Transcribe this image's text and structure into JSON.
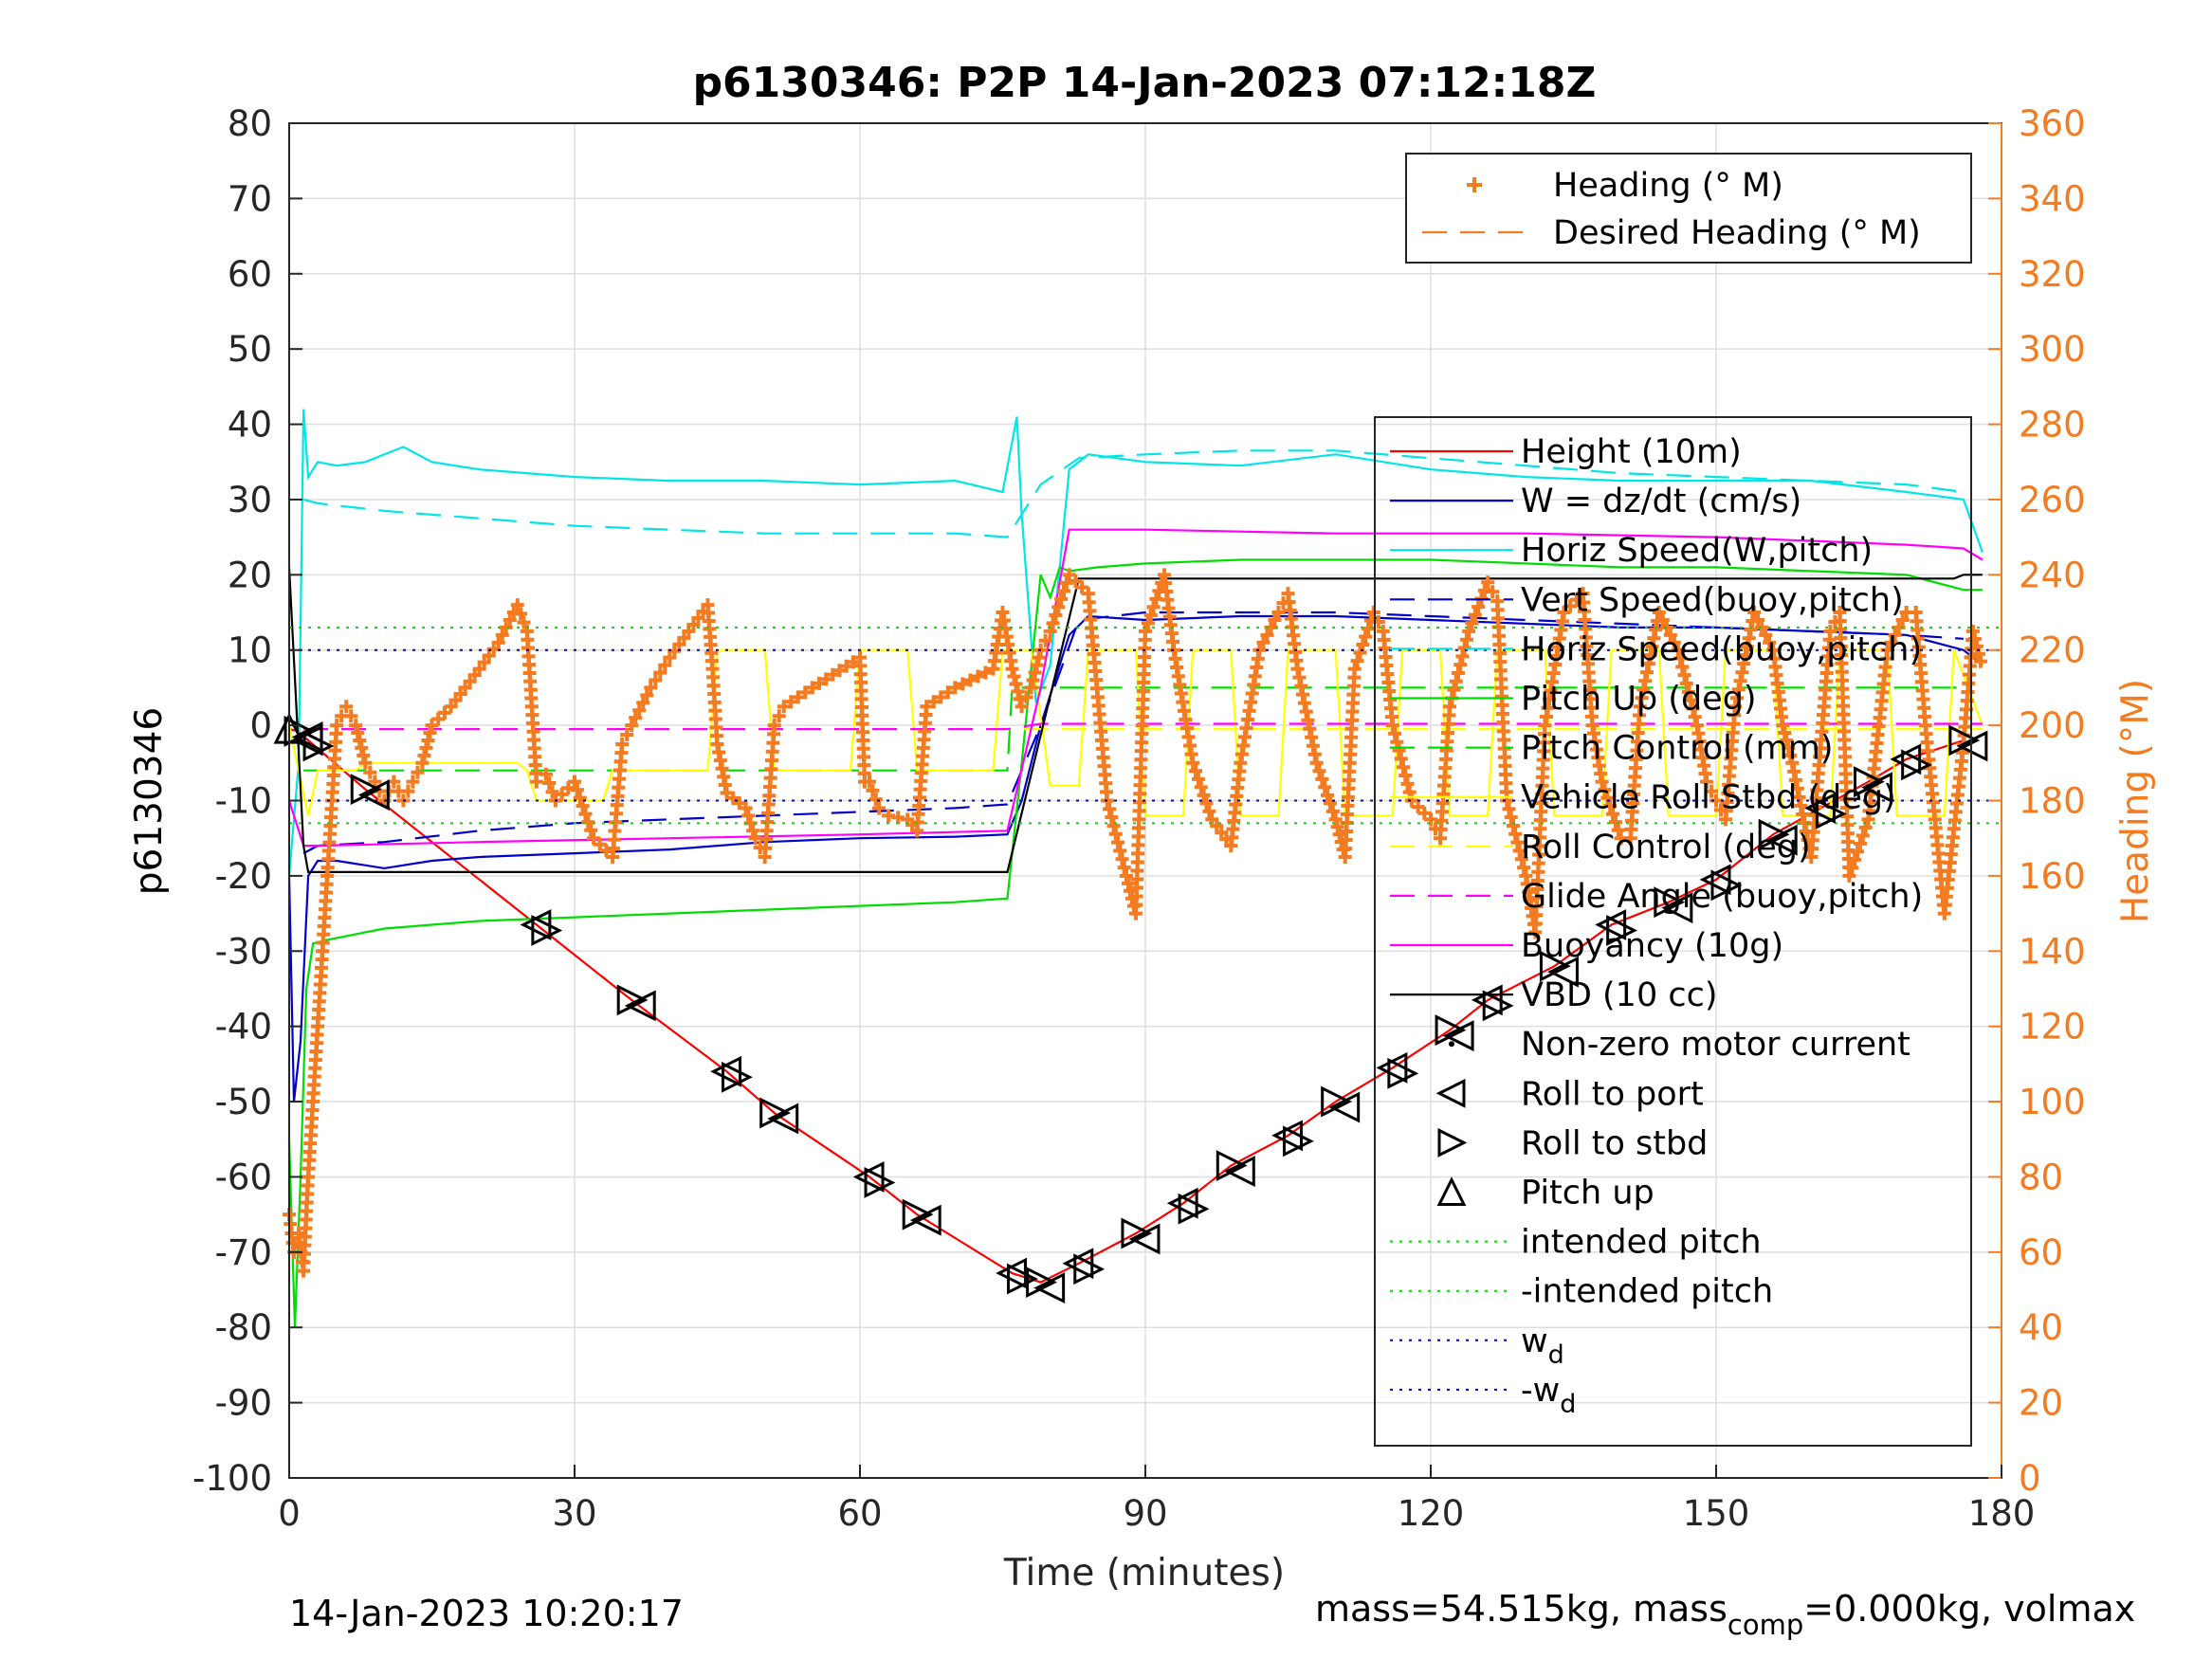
{
  "chart_data": {
    "type": "line",
    "title": "p6130346: P2P 14-Jan-2023 07:12:18Z",
    "xlabel": "Time (minutes)",
    "ylabel_left": "p6130346",
    "ylabel_right": "Heading (°M)",
    "xlim": [
      0,
      180
    ],
    "ylim_left": [
      -100,
      80
    ],
    "ylim_right": [
      0,
      360
    ],
    "x_ticks": [
      0,
      30,
      60,
      90,
      120,
      150,
      180
    ],
    "y_left_ticks": [
      80,
      70,
      60,
      50,
      40,
      30,
      20,
      10,
      0,
      -10,
      -20,
      -30,
      -40,
      -50,
      -60,
      -70,
      -80,
      -90,
      -100
    ],
    "y_right_ticks": [
      360,
      340,
      320,
      300,
      280,
      260,
      240,
      220,
      200,
      180,
      160,
      140,
      120,
      100,
      80,
      60,
      40,
      20,
      0
    ],
    "grid": true,
    "footer_left": "14-Jan-2023 10:20:17",
    "footer_right": {
      "prefix": "mass=54.515kg, mass",
      "sub": "comp",
      "suffix": "=0.000kg, volmax"
    },
    "legend_heading": [
      {
        "label": "Heading (° M)",
        "color": "#f47b20",
        "style": "plus"
      },
      {
        "label": "Desired Heading (° M)",
        "color": "#f47b20",
        "style": "dash"
      }
    ],
    "legend_main": [
      {
        "label": "Height (10m)",
        "color": "#ff0000",
        "style": "solid"
      },
      {
        "label": "W = dz/dt (cm/s)",
        "color": "#0000cc",
        "style": "solid"
      },
      {
        "label": "Horiz Speed(W,pitch)",
        "color": "#00e5e5",
        "style": "solid"
      },
      {
        "label": "Vert Speed(buoy,pitch)",
        "color": "#0000cc",
        "style": "dash"
      },
      {
        "label": "Horiz Speed(buoy,pitch)",
        "color": "#00e5e5",
        "style": "dash"
      },
      {
        "label": "Pitch Up (deg)",
        "color": "#00dd00",
        "style": "solid"
      },
      {
        "label": "Pitch Control (mm)",
        "color": "#00dd00",
        "style": "dash"
      },
      {
        "label": "Vehicle Roll Stbd (deg)",
        "color": "#ffff00",
        "style": "solid"
      },
      {
        "label": "Roll Control (deg)",
        "color": "#ffff00",
        "style": "dash"
      },
      {
        "label": "Glide Angle (buoy,pitch)",
        "color": "#ff00ff",
        "style": "dash"
      },
      {
        "label": "Buoyancy (10g)",
        "color": "#ff00ff",
        "style": "solid"
      },
      {
        "label": "VBD (10 cc)",
        "color": "#000000",
        "style": "solid"
      },
      {
        "label": "Non-zero motor current",
        "color": "#000000",
        "style": "dot"
      },
      {
        "label": "Roll to port",
        "color": "#000000",
        "style": "tri-left"
      },
      {
        "label": "Roll to stbd",
        "color": "#000000",
        "style": "tri-right"
      },
      {
        "label": "Pitch up",
        "color": "#000000",
        "style": "tri-up"
      },
      {
        "label": "intended pitch",
        "color": "#00dd00",
        "style": "dotted"
      },
      {
        "label": "-intended pitch",
        "color": "#00dd00",
        "style": "dotted"
      },
      {
        "label": "w",
        "sub": "d",
        "color": "#0000cc",
        "style": "dotted"
      },
      {
        "label": "-w",
        "sub": "d",
        "color": "#0000cc",
        "style": "dotted"
      }
    ],
    "series": [
      {
        "name": "Height (10m)",
        "color": "#ff0000",
        "axis": "left",
        "x": [
          0,
          1,
          2,
          8,
          26,
          36,
          46,
          51,
          61,
          66,
          76,
          79,
          83,
          89,
          94,
          99,
          105,
          110,
          116,
          122,
          126,
          133,
          139,
          145,
          150,
          156,
          161,
          166,
          170,
          176
        ],
        "y": [
          -0.5,
          -0.8,
          -2,
          -8.5,
          -26.5,
          -36.5,
          -46,
          -51.5,
          -60,
          -65,
          -72.8,
          -74,
          -71.5,
          -67.5,
          -63.5,
          -58.5,
          -54.5,
          -50,
          -45.5,
          -40.5,
          -36.5,
          -32,
          -26.5,
          -23.5,
          -20.5,
          -14.5,
          -11,
          -7.5,
          -4.5,
          -2
        ]
      },
      {
        "name": "W = dz/dt (cm/s)",
        "color": "#0000cc",
        "axis": "left",
        "x": [
          0,
          0.5,
          1.2,
          2,
          3,
          5,
          10,
          15,
          20,
          30,
          40,
          50,
          60,
          70,
          75.5,
          77,
          79,
          82,
          84,
          90,
          100,
          110,
          120,
          130,
          140,
          150,
          160,
          170,
          176,
          178
        ],
        "y": [
          -20,
          -50,
          -42,
          -20,
          -18,
          -18,
          -19,
          -18,
          -17.5,
          -17,
          -16.5,
          -15.5,
          -15,
          -14.8,
          -14.5,
          -10,
          0,
          12,
          14.5,
          14,
          14.5,
          14.5,
          14,
          13.5,
          13,
          13,
          12.5,
          12,
          10,
          8
        ]
      },
      {
        "name": "Horiz Speed(W,pitch)",
        "color": "#00e5e5",
        "axis": "left",
        "x": [
          0,
          1,
          1.5,
          2,
          3,
          5,
          8,
          12,
          15,
          20,
          30,
          40,
          50,
          60,
          70,
          75,
          76.5,
          77,
          78.5,
          80,
          82,
          84,
          90,
          100,
          110,
          120,
          130,
          140,
          150,
          160,
          170,
          176,
          178
        ],
        "y": [
          -20,
          -5,
          42,
          33,
          35,
          34.5,
          35,
          37,
          35,
          34,
          33,
          32.5,
          32.5,
          32,
          32.5,
          31,
          41,
          28,
          3,
          8,
          34,
          36,
          35,
          34.5,
          36,
          34,
          33,
          32.5,
          32.5,
          32.5,
          31,
          30,
          23
        ]
      },
      {
        "name": "Vert Speed(buoy,pitch)",
        "color": "#0000cc",
        "axis": "left",
        "dash": true,
        "x": [
          1.5,
          3,
          10,
          20,
          30,
          40,
          50,
          60,
          70,
          75.5,
          79,
          83,
          90,
          100,
          110,
          120,
          130,
          140,
          150,
          160,
          170,
          176
        ],
        "y": [
          -17,
          -16,
          -15.5,
          -14,
          -13,
          -12.5,
          -12,
          -11.5,
          -11,
          -10.5,
          0,
          14,
          15,
          15,
          15,
          14.5,
          14,
          13.5,
          13,
          12.5,
          12,
          11.5
        ]
      },
      {
        "name": "Horiz Speed(buoy,pitch)",
        "color": "#00e5e5",
        "axis": "left",
        "dash": true,
        "x": [
          1.5,
          3,
          10,
          20,
          30,
          40,
          50,
          60,
          70,
          75.5,
          79,
          83,
          90,
          100,
          110,
          120,
          130,
          140,
          150,
          160,
          170,
          176
        ],
        "y": [
          30,
          29.5,
          28.5,
          27.5,
          26.5,
          26,
          25.5,
          25.5,
          25.5,
          25,
          32,
          35.5,
          36,
          36.5,
          36.5,
          35.5,
          34.5,
          33.5,
          33,
          32.5,
          32,
          31
        ]
      },
      {
        "name": "Pitch Up (deg)",
        "color": "#00dd00",
        "axis": "left",
        "x": [
          0,
          0.6,
          1.2,
          1.8,
          2.5,
          4,
          10,
          20,
          30,
          40,
          50,
          60,
          70,
          75.5,
          77,
          79,
          80,
          81,
          82,
          85,
          90,
          100,
          110,
          120,
          130,
          140,
          150,
          160,
          170,
          176,
          178
        ],
        "y": [
          -55,
          -80,
          -60,
          -35,
          -29,
          -28.5,
          -27,
          -26,
          -25.5,
          -25,
          -24.5,
          -24,
          -23.5,
          -23,
          -5,
          20,
          17,
          21,
          20.5,
          21,
          21.5,
          22,
          22,
          22,
          21.5,
          21,
          21,
          20.5,
          20,
          18,
          18
        ]
      },
      {
        "name": "Pitch Control (mm)",
        "color": "#00dd00",
        "axis": "left",
        "dash": true,
        "x": [
          1.5,
          75.5,
          76,
          176
        ],
        "y": [
          -6,
          -6,
          5,
          5
        ]
      },
      {
        "name": "Vehicle Roll Stbd (deg)",
        "color": "#ffff00",
        "axis": "left",
        "x": [
          0,
          2,
          3,
          7,
          8,
          24,
          25,
          26,
          33,
          34,
          44,
          45,
          50,
          51,
          59,
          60,
          65,
          66,
          74,
          75,
          78,
          80,
          83,
          84,
          89,
          90,
          94,
          95,
          99,
          100,
          104,
          105,
          110,
          111,
          116,
          117,
          121,
          122,
          126,
          127,
          132,
          133,
          138,
          139,
          144,
          145,
          150,
          151,
          156,
          157,
          162,
          163,
          168,
          169,
          174,
          175,
          178
        ],
        "y": [
          0,
          -12,
          -6,
          -6,
          -5,
          -5,
          -6,
          -10,
          -10,
          -6,
          -6,
          10,
          10,
          -6,
          -6,
          10,
          10,
          -6,
          -6,
          10,
          10,
          -8,
          -8,
          10,
          10,
          -12,
          -12,
          10,
          10,
          -12,
          -12,
          10,
          10,
          -12,
          -12,
          10,
          10,
          -12,
          -12,
          10,
          10,
          -12,
          -12,
          10,
          10,
          -12,
          -12,
          10,
          10,
          -12,
          -12,
          10,
          10,
          -12,
          -12,
          10,
          0
        ]
      },
      {
        "name": "Roll Control (deg)",
        "color": "#ffff00",
        "axis": "left",
        "dash": true,
        "x": [
          1.5,
          178
        ],
        "y": [
          -0.5,
          -0.5
        ]
      },
      {
        "name": "Glide Angle (buoy,pitch)",
        "color": "#ff00ff",
        "axis": "left",
        "dash": true,
        "x": [
          1.5,
          75.5,
          79,
          178
        ],
        "y": [
          -0.5,
          -0.5,
          0.2,
          0.2
        ]
      },
      {
        "name": "Buoyancy (10g)",
        "color": "#ff00ff",
        "axis": "left",
        "x": [
          0,
          1.5,
          3,
          20,
          40,
          60,
          75.5,
          79,
          82,
          90,
          110,
          130,
          150,
          170,
          176,
          178
        ],
        "y": [
          -10,
          -16,
          -16,
          -15.5,
          -15,
          -14.5,
          -14,
          5,
          26,
          26,
          25.5,
          25.5,
          25,
          24,
          23.5,
          22
        ]
      },
      {
        "name": "VBD (10 cc)",
        "color": "#000000",
        "axis": "left",
        "x": [
          0,
          1.5,
          2,
          75.5,
          83,
          84,
          175,
          176,
          178
        ],
        "y": [
          21,
          -16,
          -19.5,
          -19.5,
          19.5,
          19.5,
          19.5,
          20,
          20
        ]
      },
      {
        "name": "Heading (° M)",
        "color": "#f47b20",
        "axis": "right",
        "marker": "plus",
        "x": [
          0,
          0.5,
          1,
          1.5,
          2,
          3,
          4,
          5,
          6,
          7,
          8,
          9,
          10,
          11,
          12,
          13,
          14,
          15,
          17,
          20,
          22,
          24,
          25,
          26,
          27,
          28,
          30,
          32,
          34,
          35,
          36,
          38,
          40,
          42,
          44,
          44.5,
          45,
          46,
          48,
          49,
          50,
          51,
          52,
          55,
          60,
          60.5,
          61,
          62,
          63,
          65,
          66,
          67,
          70,
          74,
          75,
          76,
          77,
          78,
          79,
          80,
          82,
          84,
          86,
          88,
          89,
          90,
          92,
          93,
          95,
          97,
          99,
          100,
          102,
          104,
          105,
          106,
          108,
          110,
          111,
          112,
          114,
          115,
          116,
          118,
          120,
          121,
          122,
          124,
          126,
          127,
          128,
          130,
          131,
          132,
          134,
          136,
          137,
          138,
          140,
          141,
          142,
          144,
          146,
          148,
          149,
          150,
          151,
          152,
          154,
          156,
          157,
          158,
          160,
          162,
          163,
          164,
          166,
          168,
          170,
          171,
          172,
          174,
          176,
          177,
          178
        ],
        "y": [
          70,
          60,
          65,
          55,
          80,
          120,
          160,
          200,
          205,
          200,
          190,
          185,
          180,
          185,
          180,
          185,
          190,
          200,
          205,
          215,
          222,
          232,
          225,
          185,
          187,
          180,
          185,
          170,
          165,
          195,
          200,
          210,
          218,
          225,
          232,
          215,
          195,
          182,
          178,
          170,
          165,
          200,
          205,
          210,
          218,
          185,
          185,
          178,
          176,
          175,
          172,
          205,
          210,
          215,
          230,
          215,
          205,
          210,
          220,
          225,
          240,
          235,
          180,
          160,
          150,
          225,
          240,
          220,
          190,
          175,
          168,
          190,
          220,
          230,
          235,
          215,
          190,
          175,
          165,
          215,
          230,
          225,
          200,
          180,
          175,
          170,
          205,
          225,
          238,
          233,
          180,
          160,
          145,
          200,
          230,
          235,
          200,
          185,
          170,
          170,
          205,
          230,
          220,
          200,
          185,
          180,
          175,
          205,
          230,
          220,
          200,
          190,
          165,
          225,
          230,
          160,
          175,
          220,
          230,
          230,
          200,
          150,
          195,
          225,
          215
        ]
      }
    ]
  }
}
